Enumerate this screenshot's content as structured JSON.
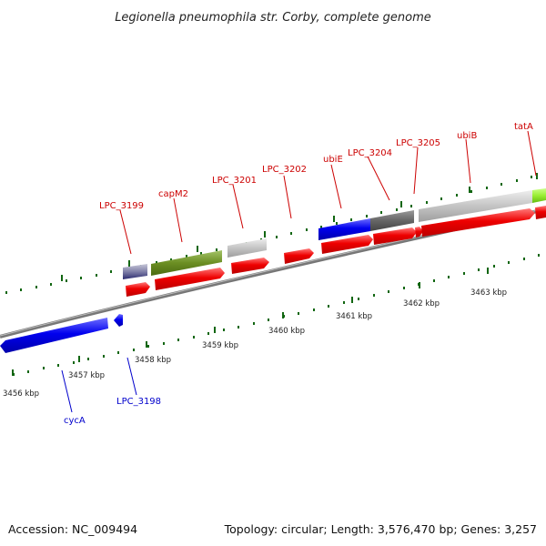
{
  "title": "Legionella pneumophila str. Corby, complete genome",
  "footer": {
    "accession": "Accession: NC_009494",
    "summary": "Topology: circular; Length: 3,576,470 bp; Genes: 3,257"
  },
  "colors": {
    "cds_forward": "#ee0000",
    "cds_reverse": "#0000ee",
    "backbone": "#888888",
    "tick": "#116611",
    "label_forward": "#cc0000",
    "label_reverse": "#0000cc"
  },
  "kbp_labels": [
    "3456 kbp",
    "3457 kbp",
    "3458 kbp",
    "3459 kbp",
    "3460 kbp",
    "3461 kbp",
    "3462 kbp",
    "3463 kbp"
  ],
  "genes_top": [
    "LPC_3199",
    "capM2",
    "LPC_3201",
    "LPC_3202",
    "ubiE",
    "LPC_3204",
    "LPC_3205",
    "ubiB",
    "tatA"
  ],
  "genes_bottom": [
    "cycA",
    "LPC_3198"
  ]
}
